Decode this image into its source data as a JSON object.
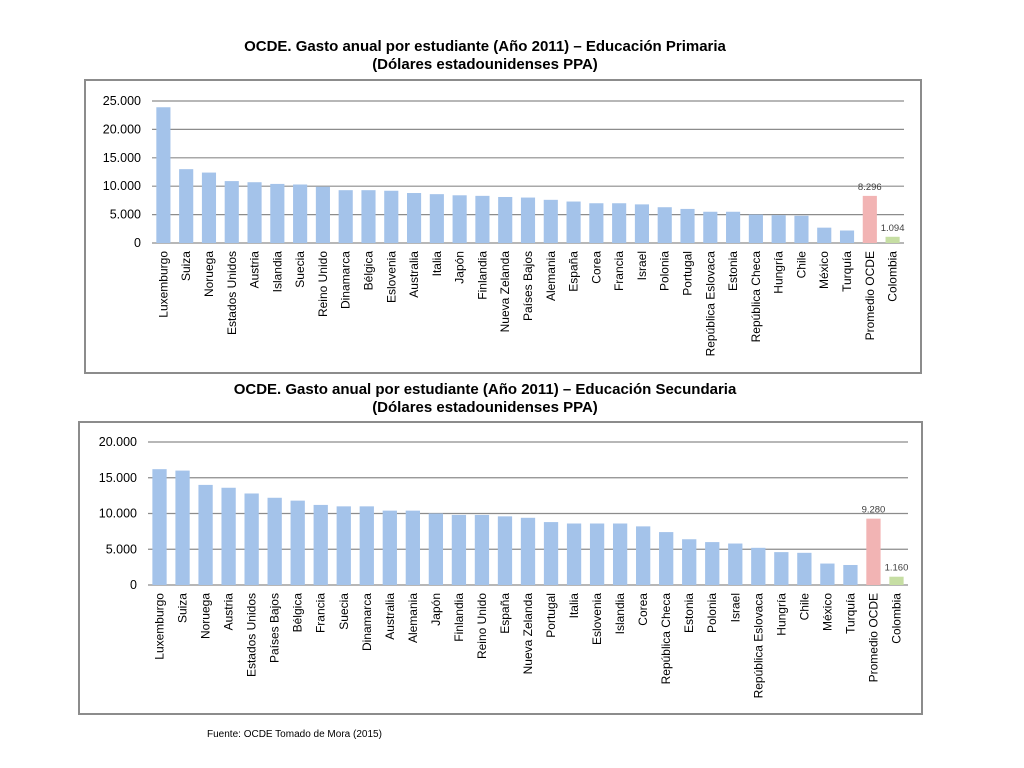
{
  "source_text": "Fuente: OCDE Tomado de Mora (2015)",
  "colors": {
    "bar": "#a4c3ea",
    "average": "#f2b4b4",
    "colombia": "#c6dea3",
    "grid": "#8c8c8c"
  },
  "chart_data": [
    {
      "type": "bar",
      "title": "OCDE.  Gasto anual por estudiante (Año 2011) – Educación Primaria",
      "subtitle": "(Dólares estadounidenses PPA)",
      "xlabel": "",
      "ylabel": "",
      "ylim": [
        0,
        25000
      ],
      "yticks": [
        0,
        5000,
        10000,
        15000,
        20000,
        25000
      ],
      "ytick_labels": [
        "0",
        "5.000",
        "10.000",
        "15.000",
        "20.000",
        "25.000"
      ],
      "grid": true,
      "legend": "none",
      "categories": [
        "Luxemburgo",
        "Suiza",
        "Noruega",
        "Estados Unidos",
        "Austria",
        "Islandia",
        "Suecia",
        "Reino Unido",
        "Dinamarca",
        "Bélgica",
        "Eslovenia",
        "Australia",
        "Italia",
        "Japón",
        "Finlandia",
        "Nueva Zelanda",
        "Países Bajos",
        "Alemania",
        "España",
        "Corea",
        "Francia",
        "Israel",
        "Polonia",
        "Portugal",
        "República Eslovaca",
        "Estonia",
        "República Checa",
        "Hungría",
        "Chile",
        "México",
        "Turquía",
        "Promedio OCDE",
        "Colombia"
      ],
      "values": [
        23900,
        13000,
        12400,
        10900,
        10700,
        10400,
        10300,
        9900,
        9300,
        9300,
        9200,
        8800,
        8600,
        8400,
        8300,
        8100,
        8000,
        7600,
        7300,
        7000,
        7000,
        6800,
        6300,
        6000,
        5500,
        5500,
        5000,
        4900,
        4800,
        2700,
        2200,
        8296,
        1094
      ],
      "data_labels": [
        {
          "category": "Promedio OCDE",
          "text": "8.296"
        },
        {
          "category": "Colombia",
          "text": "1.094"
        }
      ],
      "highlight": {
        "Promedio OCDE": "average",
        "Colombia": "colombia"
      }
    },
    {
      "type": "bar",
      "title": "OCDE.  Gasto anual por estudiante (Año 2011) – Educación Secundaria",
      "subtitle": "(Dólares estadounidenses PPA)",
      "xlabel": "",
      "ylabel": "",
      "ylim": [
        0,
        20000
      ],
      "yticks": [
        0,
        5000,
        10000,
        15000,
        20000
      ],
      "ytick_labels": [
        "0",
        "5.000",
        "10.000",
        "15.000",
        "20.000"
      ],
      "grid": true,
      "legend": "none",
      "categories": [
        "Luxemburgo",
        "Suiza",
        "Noruega",
        "Austria",
        "Estados Unidos",
        "Países Bajos",
        "Bélgica",
        "Francia",
        "Suecia",
        "Dinamarca",
        "Australia",
        "Alemania",
        "Japón",
        "Finlandia",
        "Reino Unido",
        "España",
        "Nueva Zelanda",
        "Portugal",
        "Italia",
        "Eslovenia",
        "Islandia",
        "Corea",
        "República Checa",
        "Estonia",
        "Polonia",
        "Israel",
        "República Eslovaca",
        "Hungría",
        "Chile",
        "México",
        "Turquía",
        "Promedio OCDE",
        "Colombia"
      ],
      "values": [
        16200,
        16000,
        14000,
        13600,
        12800,
        12200,
        11800,
        11200,
        11000,
        11000,
        10400,
        10400,
        10000,
        9800,
        9800,
        9600,
        9400,
        8800,
        8600,
        8600,
        8600,
        8200,
        7400,
        6400,
        6000,
        5800,
        5200,
        4600,
        4500,
        3000,
        2800,
        9280,
        1160
      ],
      "data_labels": [
        {
          "category": "Promedio OCDE",
          "text": "9.280"
        },
        {
          "category": "Colombia",
          "text": "1.160"
        }
      ],
      "highlight": {
        "Promedio OCDE": "average",
        "Colombia": "colombia"
      }
    }
  ]
}
